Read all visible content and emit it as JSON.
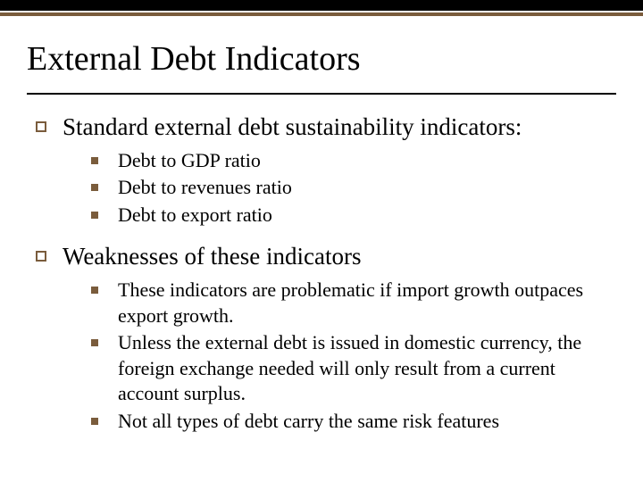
{
  "colors": {
    "top_border": "#000000",
    "accent": "#7a5c3c",
    "text": "#000000",
    "background": "#ffffff"
  },
  "title": "External Debt Indicators",
  "sections": [
    {
      "heading": "Standard external debt sustainability indicators:",
      "items": [
        "Debt to GDP ratio",
        "Debt to revenues ratio",
        "Debt to export ratio"
      ]
    },
    {
      "heading": "Weaknesses of these indicators",
      "items": [
        "These indicators are problematic if import growth outpaces export growth.",
        "Unless the external debt is issued in domestic currency, the foreign exchange needed will only result from a current account surplus.",
        "Not all types of debt carry the same risk features"
      ]
    }
  ]
}
